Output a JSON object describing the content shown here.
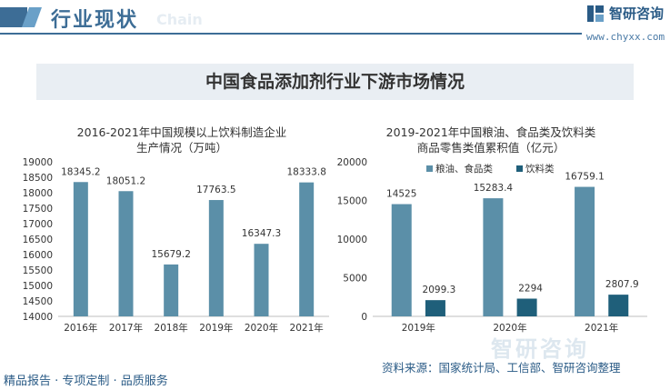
{
  "header": {
    "title": "行业现状",
    "watermark": "Chain",
    "brand": "智研咨询",
    "url": "www.chyxx.com"
  },
  "banner": {
    "title": "中国食品添加剂行业下游市场情况"
  },
  "colors": {
    "primary": "#5b8fa8",
    "secondary": "#1f5f7a",
    "brand": "#3d6d96"
  },
  "chart_data": [
    {
      "type": "bar",
      "title": "2016-2021年中国规模以上饮料制造企业生产情况（万吨）",
      "title_lines": [
        "2016-2021年中国规模以上饮料制造企业",
        "生产情况（万吨）"
      ],
      "categories": [
        "2016年",
        "2017年",
        "2018年",
        "2019年",
        "2020年",
        "2021年"
      ],
      "values": [
        18345.2,
        18051.2,
        15679.2,
        17763.5,
        16347.3,
        18333.8
      ],
      "value_labels": [
        "18345.2",
        "18051.2",
        "15679.2",
        "17763.5",
        "16347.3",
        "18333.8"
      ],
      "ylim": [
        14000,
        19000
      ],
      "yticks": [
        14000,
        14500,
        15000,
        15500,
        16000,
        16500,
        17000,
        17500,
        18000,
        18500,
        19000
      ],
      "grid": false
    },
    {
      "type": "bar",
      "title": "2019-2021年中国粮油、食品类及饮料类商品零售类值累积值（亿元）",
      "title_lines": [
        "2019-2021年中国粮油、食品类及饮料类",
        "商品零售类值累积值（亿元）"
      ],
      "categories": [
        "2019年",
        "2020年",
        "2021年"
      ],
      "series": [
        {
          "name": "粮油、食品类",
          "values": [
            14525,
            15283.4,
            16759.1
          ],
          "labels": [
            "14525",
            "15283.4",
            "16759.1"
          ]
        },
        {
          "name": "饮料类",
          "values": [
            2099.3,
            2294,
            2807.9
          ],
          "labels": [
            "2099.3",
            "2294",
            "2807.9"
          ]
        }
      ],
      "ylim": [
        0,
        20000
      ],
      "yticks": [
        0,
        5000,
        10000,
        15000,
        20000
      ],
      "legend": "top",
      "grid": false
    }
  ],
  "footer": {
    "left": "精品报告 · 专项定制 · 品质服务",
    "source": "资料来源：国家统计局、工信部、智研咨询整理",
    "watermark": "智研咨询"
  }
}
